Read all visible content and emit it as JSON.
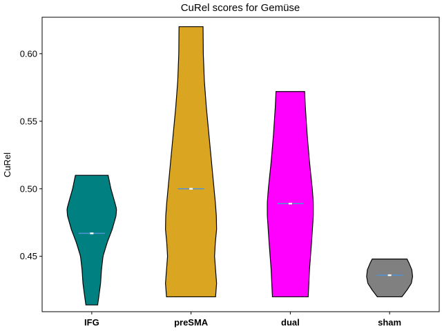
{
  "chart_data": {
    "type": "violin",
    "title": "CuRel scores for Gemüse",
    "xlabel": "",
    "ylabel": "CuRel",
    "ylim": [
      0.409,
      0.627
    ],
    "yticks": [
      "0.45",
      "0.50",
      "0.55",
      "0.60"
    ],
    "grid": false,
    "categories": [
      "IFG",
      "preSMA",
      "dual",
      "sham"
    ],
    "colors": [
      "#008080",
      "#DAA520",
      "#FF00FF",
      "#808080"
    ],
    "median_color": "#4f94d4",
    "violins": [
      {
        "name": "IFG",
        "min": 0.414,
        "max": 0.51,
        "median": 0.467,
        "profile": [
          [
            0.414,
            0.23
          ],
          [
            0.42,
            0.275
          ],
          [
            0.43,
            0.345
          ],
          [
            0.44,
            0.38
          ],
          [
            0.45,
            0.44
          ],
          [
            0.46,
            0.6
          ],
          [
            0.47,
            0.8
          ],
          [
            0.48,
            0.95
          ],
          [
            0.485,
            0.97
          ],
          [
            0.49,
            0.9
          ],
          [
            0.5,
            0.75
          ],
          [
            0.51,
            0.64
          ]
        ]
      },
      {
        "name": "preSMA",
        "min": 0.42,
        "max": 0.62,
        "median": 0.5,
        "profile": [
          [
            0.42,
            0.96
          ],
          [
            0.43,
            1.0
          ],
          [
            0.44,
            0.96
          ],
          [
            0.45,
            0.92
          ],
          [
            0.46,
            0.95
          ],
          [
            0.47,
            1.0
          ],
          [
            0.48,
            0.99
          ],
          [
            0.49,
            0.95
          ],
          [
            0.5,
            0.9
          ],
          [
            0.52,
            0.8
          ],
          [
            0.54,
            0.7
          ],
          [
            0.56,
            0.6
          ],
          [
            0.58,
            0.52
          ],
          [
            0.6,
            0.48
          ],
          [
            0.62,
            0.47
          ]
        ]
      },
      {
        "name": "dual",
        "min": 0.42,
        "max": 0.572,
        "median": 0.489,
        "profile": [
          [
            0.42,
            0.7
          ],
          [
            0.44,
            0.75
          ],
          [
            0.46,
            0.83
          ],
          [
            0.48,
            0.9
          ],
          [
            0.49,
            0.9
          ],
          [
            0.5,
            0.86
          ],
          [
            0.52,
            0.75
          ],
          [
            0.54,
            0.66
          ],
          [
            0.56,
            0.59
          ],
          [
            0.572,
            0.56
          ]
        ]
      },
      {
        "name": "sham",
        "min": 0.42,
        "max": 0.448,
        "median": 0.436,
        "profile": [
          [
            0.42,
            0.48
          ],
          [
            0.425,
            0.68
          ],
          [
            0.43,
            0.85
          ],
          [
            0.435,
            0.9
          ],
          [
            0.44,
            0.87
          ],
          [
            0.445,
            0.76
          ],
          [
            0.448,
            0.68
          ]
        ]
      }
    ]
  }
}
